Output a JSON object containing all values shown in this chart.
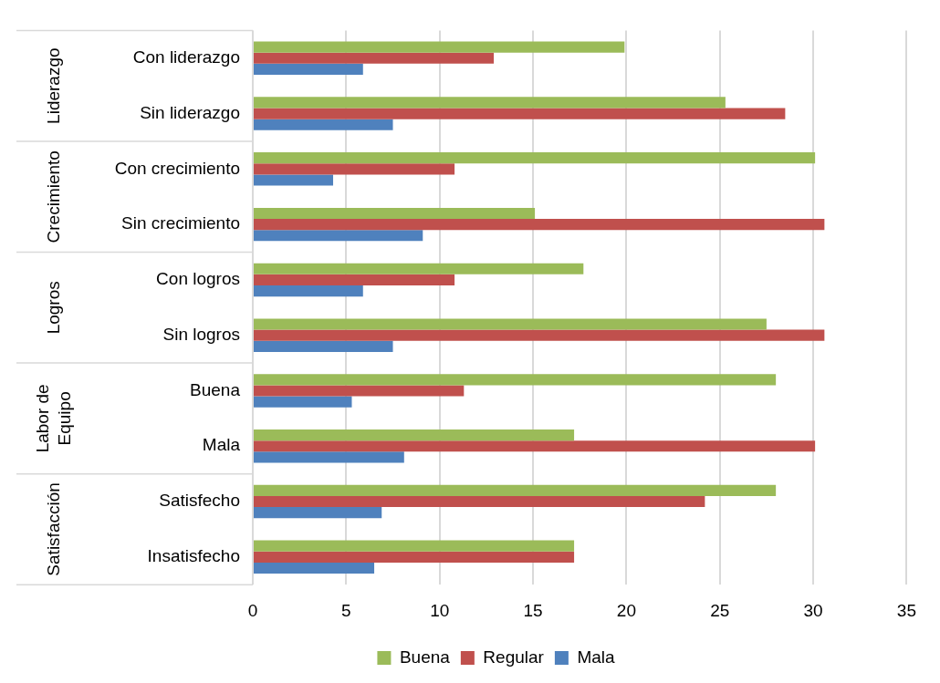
{
  "chart_data": {
    "type": "bar",
    "orientation": "horizontal",
    "categories": [
      "Con liderazgo",
      "Sin liderazgo",
      "Con crecimiento",
      "Sin crecimiento",
      "Con logros",
      "Sin logros",
      "Buena",
      "Mala",
      "Satisfecho",
      "Insatisfecho"
    ],
    "series": [
      {
        "name": "Buena",
        "color": "#9bbb59",
        "values": [
          19.9,
          25.3,
          30.1,
          15.1,
          17.7,
          27.5,
          28.0,
          17.2,
          28.0,
          17.2
        ]
      },
      {
        "name": "Regular",
        "color": "#c0504d",
        "values": [
          12.9,
          28.5,
          10.8,
          30.6,
          10.8,
          30.6,
          11.3,
          30.1,
          24.2,
          17.2
        ]
      },
      {
        "name": "Mala",
        "color": "#4f81bd",
        "values": [
          5.9,
          7.5,
          4.3,
          9.1,
          5.9,
          7.5,
          5.3,
          8.1,
          6.9,
          6.5
        ]
      }
    ],
    "annotations": [
      "Liderazgo",
      "Crecimiento",
      "Logros",
      "Labor de Equipo",
      "Satisfacción"
    ],
    "xlim": [
      0,
      35
    ],
    "xticks": [
      0,
      5,
      10,
      15,
      20,
      25,
      30,
      35
    ],
    "grid": "x",
    "legend": "bottom"
  }
}
